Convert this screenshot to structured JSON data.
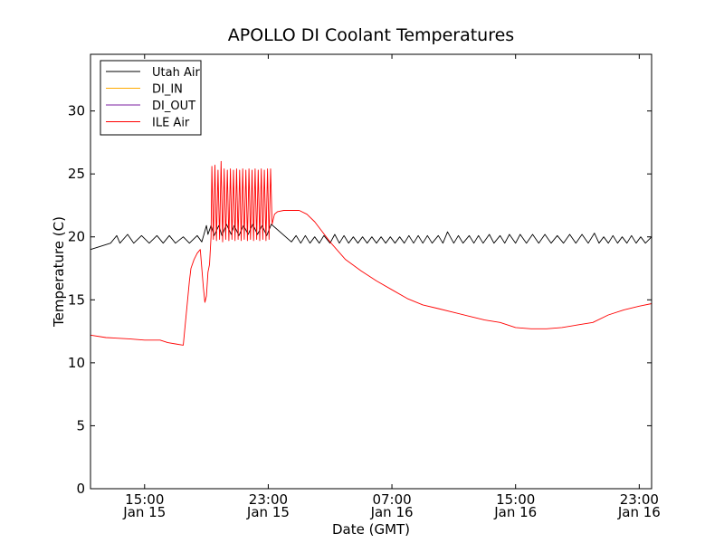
{
  "chart_data": {
    "type": "line",
    "title": "APOLLO DI Coolant Temperatures",
    "xlabel": "Date (GMT)",
    "ylabel": "Temperature (C)",
    "x_unit": "hours since Jan 15 00:00 GMT",
    "xlim": [
      11.5,
      47.8
    ],
    "ylim": [
      0,
      34.5
    ],
    "yticks": [
      0,
      5,
      10,
      15,
      20,
      25,
      30
    ],
    "xticks": [
      {
        "x": 15,
        "line1": "15:00",
        "line2": "Jan 15"
      },
      {
        "x": 23,
        "line1": "23:00",
        "line2": "Jan 15"
      },
      {
        "x": 31,
        "line1": "07:00",
        "line2": "Jan 16"
      },
      {
        "x": 39,
        "line1": "15:00",
        "line2": "Jan 16"
      },
      {
        "x": 47,
        "line1": "23:00",
        "line2": "Jan 16"
      }
    ],
    "legend_position": "top-left",
    "series": [
      {
        "name": "Utah Air",
        "color": "#000000",
        "x": [
          11.5,
          12.8,
          13.2,
          13.4,
          13.9,
          14.3,
          14.8,
          15.3,
          15.8,
          16.2,
          16.6,
          17.0,
          17.5,
          17.9,
          18.4,
          18.7,
          19.0,
          19.1,
          19.3,
          19.5,
          19.8,
          20.0,
          20.3,
          20.6,
          20.8,
          21.1,
          21.4,
          21.7,
          22.0,
          22.3,
          22.6,
          22.9,
          23.2,
          24.5,
          24.8,
          25.1,
          25.4,
          25.7,
          26.0,
          26.3,
          26.6,
          27.0,
          27.3,
          27.6,
          27.9,
          28.2,
          28.5,
          28.8,
          29.1,
          29.4,
          29.7,
          30.0,
          30.3,
          30.6,
          30.9,
          31.2,
          31.5,
          31.8,
          32.1,
          32.4,
          32.7,
          33.0,
          33.3,
          33.6,
          34.0,
          34.3,
          34.6,
          35.0,
          35.3,
          35.6,
          36.0,
          36.3,
          36.6,
          36.9,
          37.3,
          37.6,
          38.0,
          38.3,
          38.6,
          39.0,
          39.3,
          39.7,
          40.1,
          40.5,
          40.9,
          41.3,
          41.7,
          42.1,
          42.5,
          42.9,
          43.3,
          43.7,
          44.1,
          44.4,
          44.7,
          45.0,
          45.3,
          45.6,
          45.9,
          46.2,
          46.5,
          46.8,
          47.1,
          47.4,
          47.8
        ],
        "y": [
          19.0,
          19.5,
          20.1,
          19.5,
          20.2,
          19.5,
          20.1,
          19.5,
          20.1,
          19.5,
          20.1,
          19.5,
          20.0,
          19.5,
          20.1,
          19.6,
          20.9,
          20.2,
          20.9,
          20.1,
          20.9,
          20.1,
          21.0,
          20.2,
          20.9,
          20.1,
          20.9,
          20.2,
          21.0,
          20.2,
          20.9,
          20.1,
          21.0,
          19.6,
          20.1,
          19.5,
          20.1,
          19.5,
          20.0,
          19.5,
          20.1,
          19.5,
          20.2,
          19.5,
          20.1,
          19.5,
          20.0,
          19.5,
          20.0,
          19.5,
          20.0,
          19.5,
          20.0,
          19.5,
          20.0,
          19.5,
          20.0,
          19.5,
          20.1,
          19.5,
          20.1,
          19.5,
          20.1,
          19.5,
          20.1,
          19.5,
          20.4,
          19.5,
          20.1,
          19.5,
          20.1,
          19.5,
          20.1,
          19.5,
          20.2,
          19.5,
          20.1,
          19.5,
          20.2,
          19.5,
          20.2,
          19.5,
          20.2,
          19.5,
          20.2,
          19.5,
          20.1,
          19.5,
          20.2,
          19.5,
          20.2,
          19.5,
          20.3,
          19.5,
          20.0,
          19.5,
          20.1,
          19.5,
          20.0,
          19.5,
          20.1,
          19.5,
          20.0,
          19.5,
          20.0
        ]
      },
      {
        "name": "DI_IN",
        "color": "#ffaa00",
        "x": [],
        "y": []
      },
      {
        "name": "DI_OUT",
        "color": "#7b1fa2",
        "x": [],
        "y": []
      },
      {
        "name": "ILE Air",
        "color": "#ff0000",
        "x": [
          11.5,
          12.5,
          14.0,
          15.0,
          16.0,
          16.5,
          17.0,
          17.5,
          17.9,
          18.0,
          18.2,
          18.4,
          18.6,
          18.8,
          18.9,
          19.0,
          19.1,
          19.2,
          19.3,
          19.35,
          19.45,
          19.55,
          19.65,
          19.75,
          19.85,
          19.95,
          20.05,
          20.15,
          20.25,
          20.35,
          20.45,
          20.55,
          20.65,
          20.75,
          20.85,
          20.95,
          21.05,
          21.15,
          21.25,
          21.35,
          21.45,
          21.55,
          21.65,
          21.75,
          21.85,
          21.95,
          22.05,
          22.15,
          22.25,
          22.35,
          22.45,
          22.55,
          22.65,
          22.75,
          22.85,
          22.95,
          23.05,
          23.15,
          23.25,
          23.4,
          23.6,
          24.0,
          24.5,
          25.0,
          25.5,
          26.0,
          27.0,
          28.0,
          29.0,
          30.0,
          31.0,
          32.0,
          33.0,
          34.0,
          35.0,
          36.0,
          37.0,
          38.0,
          39.0,
          40.0,
          41.0,
          42.0,
          43.0,
          44.0,
          45.0,
          46.0,
          47.0,
          47.8
        ],
        "y": [
          12.2,
          12.0,
          11.9,
          11.8,
          11.8,
          11.6,
          11.5,
          11.4,
          16.5,
          17.5,
          18.2,
          18.7,
          19.0,
          16.0,
          14.8,
          15.3,
          17.2,
          17.8,
          20.0,
          25.6,
          19.8,
          25.7,
          19.7,
          25.3,
          19.8,
          26.0,
          19.6,
          25.4,
          19.8,
          25.3,
          19.7,
          25.4,
          19.8,
          25.3,
          19.7,
          25.4,
          19.8,
          25.3,
          19.7,
          25.4,
          19.8,
          25.3,
          19.7,
          25.4,
          19.8,
          25.3,
          19.7,
          25.4,
          19.8,
          25.3,
          19.7,
          25.4,
          19.8,
          25.3,
          19.7,
          25.4,
          19.8,
          25.4,
          21.0,
          21.8,
          22.0,
          22.1,
          22.1,
          22.1,
          21.8,
          21.2,
          19.6,
          18.2,
          17.3,
          16.5,
          15.8,
          15.1,
          14.6,
          14.3,
          14.0,
          13.7,
          13.4,
          13.2,
          12.8,
          12.7,
          12.7,
          12.8,
          13.0,
          13.2,
          13.8,
          14.2,
          14.5,
          14.7
        ]
      }
    ]
  }
}
